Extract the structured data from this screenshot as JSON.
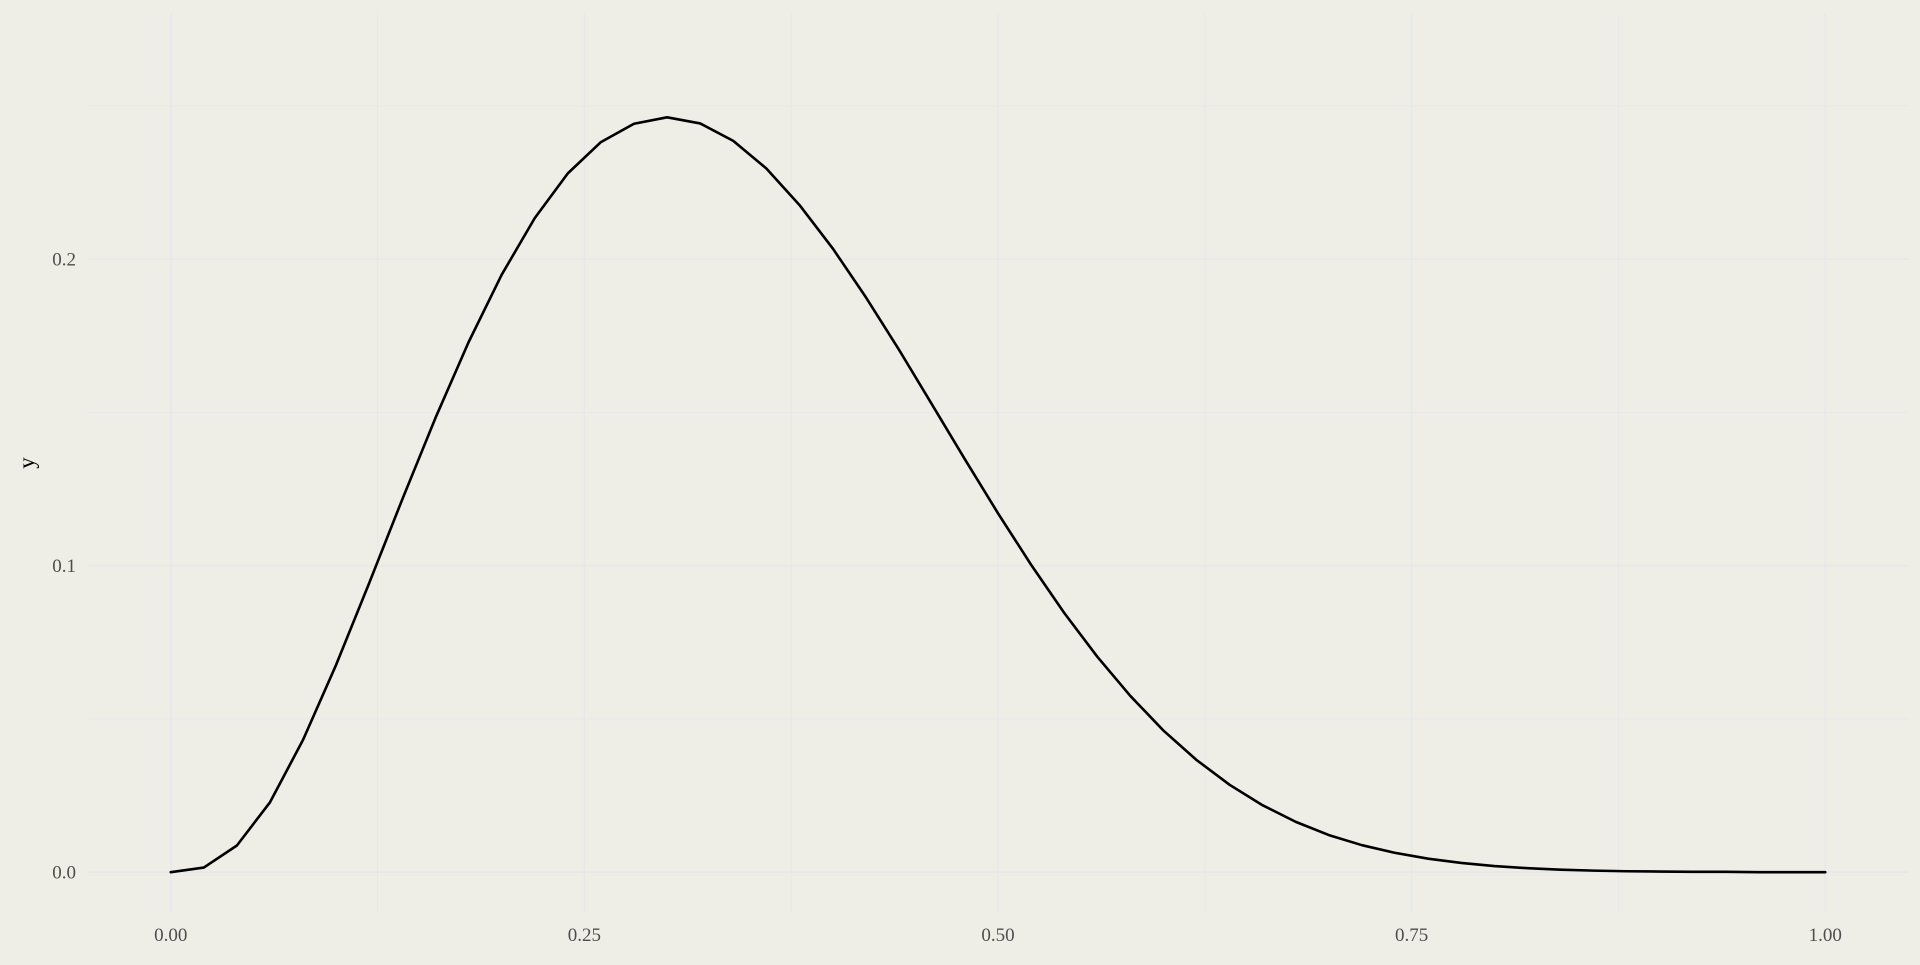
{
  "chart_data": {
    "type": "line",
    "title": "",
    "xlabel": "",
    "ylabel": "y",
    "xlim": [
      -0.05,
      1.05
    ],
    "ylim": [
      -0.013,
      0.28
    ],
    "x_ticks": [
      0.0,
      0.25,
      0.5,
      0.75,
      1.0
    ],
    "x_tick_labels": [
      "0.00",
      "0.25",
      "0.50",
      "0.75",
      "1.00"
    ],
    "y_ticks": [
      0.0,
      0.1,
      0.2
    ],
    "y_tick_labels": [
      "0.0",
      "0.1",
      "0.2"
    ],
    "x_minor_ticks": [
      0.125,
      0.375,
      0.625,
      0.875
    ],
    "y_minor_ticks": [
      0.05,
      0.15,
      0.25
    ],
    "grid": true,
    "legend": "none",
    "colors": {
      "background": "#eeeee6",
      "grid": "#e6e8ea",
      "line": "#000000"
    },
    "series": [
      {
        "x": [
          0.0,
          0.02,
          0.04,
          0.06,
          0.08,
          0.1,
          0.12,
          0.14,
          0.16,
          0.18,
          0.2,
          0.22,
          0.24,
          0.26,
          0.28,
          0.3,
          0.32,
          0.34,
          0.36,
          0.38,
          0.4,
          0.42,
          0.44,
          0.46,
          0.48,
          0.5,
          0.52,
          0.54,
          0.56,
          0.58,
          0.6,
          0.62,
          0.64,
          0.66,
          0.68,
          0.7,
          0.72,
          0.74,
          0.76,
          0.78,
          0.8,
          0.82,
          0.84,
          0.86,
          0.88,
          0.9,
          0.92,
          0.94,
          0.96,
          0.98,
          1.0
        ],
        "values": [
          0.0,
          0.0015,
          0.0087,
          0.0228,
          0.0432,
          0.0677,
          0.0944,
          0.1217,
          0.1482,
          0.1729,
          0.1949,
          0.2134,
          0.228,
          0.2382,
          0.2442,
          0.2463,
          0.2443,
          0.2386,
          0.2296,
          0.2177,
          0.2036,
          0.1877,
          0.1706,
          0.1527,
          0.1347,
          0.1171,
          0.1003,
          0.0846,
          0.0703,
          0.0575,
          0.0462,
          0.0366,
          0.0285,
          0.0218,
          0.0164,
          0.0121,
          0.0088,
          0.0063,
          0.0044,
          0.003,
          0.002,
          0.0013,
          0.0008,
          0.0005,
          0.0003,
          0.0002,
          0.0001,
          0.0001,
          0.0,
          0.0,
          0.0
        ]
      }
    ]
  }
}
